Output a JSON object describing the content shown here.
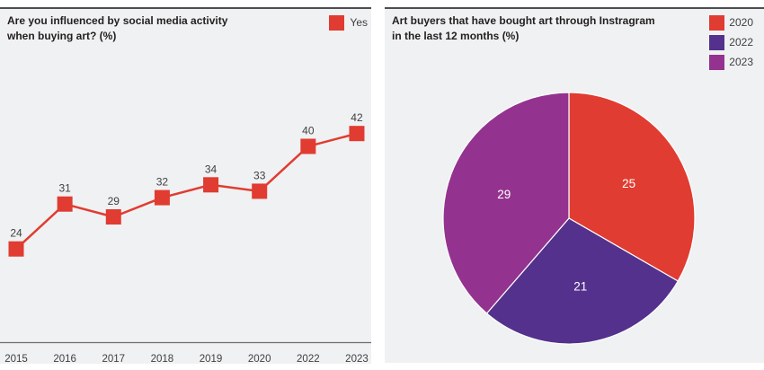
{
  "titles": {
    "left": "Are you influenced by social media activity\nwhen buying art? (%)",
    "right": "Art buyers that have bought art through Instragram\nin the last 12 months (%)"
  },
  "colors": {
    "panel_background": "#f0f1f2",
    "panel_top_border": "#4d4e50",
    "axis_line": "#6d6e71",
    "title_text": "#231f20",
    "label_text": "#3f4041",
    "pie_label_text": "#ffffff",
    "red": "#e03c31",
    "indigo": "#53318c",
    "magenta": "#94338f"
  },
  "chart_data": [
    {
      "type": "line",
      "title": "Are you influenced by social media activity when buying art? (%)",
      "categories": [
        "2015",
        "2016",
        "2017",
        "2018",
        "2019",
        "2020",
        "2022",
        "2023"
      ],
      "series": [
        {
          "name": "Yes",
          "color": "#e03c31",
          "values": [
            24,
            31,
            29,
            32,
            34,
            33,
            40,
            42
          ]
        }
      ],
      "marker": "square",
      "data_labels": true,
      "legend_position": "top-right",
      "y_axis_visible": false,
      "grid": false,
      "ylim_estimate": [
        9,
        55
      ]
    },
    {
      "type": "pie",
      "title": "Art buyers that have bought art through Instragram in the last 12 months (%)",
      "series": [
        {
          "name": "2020",
          "value": 25,
          "color": "#e03c31"
        },
        {
          "name": "2022",
          "value": 21,
          "color": "#53318c"
        },
        {
          "name": "2023",
          "value": 29,
          "color": "#94338f"
        }
      ],
      "start_angle": "top",
      "direction": "clockwise",
      "data_labels": true,
      "legend_position": "top-right",
      "grid": false
    }
  ]
}
